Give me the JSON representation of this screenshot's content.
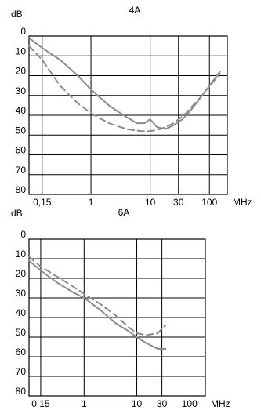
{
  "chart_data": [
    {
      "type": "line",
      "title": "4A",
      "ylabel": "dB",
      "xunit": "MHz",
      "x_scale": "log",
      "ylim": [
        0,
        80
      ],
      "y_inverted": true,
      "yticks": [
        0,
        10,
        20,
        30,
        40,
        50,
        60,
        70,
        80
      ],
      "xtick_labels": [
        "0,15",
        "1",
        "10",
        "30",
        "100"
      ],
      "xtick_values": [
        0.15,
        1,
        10,
        30,
        100
      ],
      "xgrid_values": [
        0.15,
        1,
        10,
        30,
        100
      ],
      "xlim": [
        0.09,
        200
      ],
      "grid": true,
      "colors": {
        "series": "#8c8c8c",
        "grid": "#000000"
      },
      "series": [
        {
          "style": "solid",
          "x": [
            0.09,
            0.15,
            0.3,
            0.6,
            1,
            2,
            4,
            6,
            8,
            10,
            13,
            18,
            25,
            35,
            50,
            80,
            150
          ],
          "y": [
            1,
            6,
            12,
            20,
            27,
            35,
            41,
            44,
            44,
            42,
            46,
            47,
            45,
            42,
            37,
            29,
            18
          ]
        },
        {
          "style": "dashed",
          "x": [
            0.09,
            0.15,
            0.3,
            0.6,
            1,
            2,
            4,
            7,
            10,
            15,
            25,
            40,
            70,
            150
          ],
          "y": [
            5,
            12,
            25,
            34,
            39,
            44,
            47,
            48,
            48,
            47,
            44,
            39,
            31,
            19
          ]
        }
      ]
    },
    {
      "type": "line",
      "title": "6A",
      "ylabel": "dB",
      "xunit": "MHz",
      "x_scale": "log",
      "ylim": [
        0,
        80
      ],
      "y_inverted": true,
      "yticks": [
        0,
        10,
        20,
        30,
        40,
        50,
        60,
        70,
        80
      ],
      "xtick_labels": [
        "0,15",
        "1",
        "10",
        "30",
        "100"
      ],
      "xtick_values": [
        0.15,
        1,
        10,
        30,
        100
      ],
      "xgrid_values": [
        0.15,
        1,
        10,
        30
      ],
      "xlim": [
        0.09,
        200
      ],
      "grid": true,
      "colors": {
        "series": "#8c8c8c",
        "grid": "#000000"
      },
      "series": [
        {
          "style": "solid",
          "x": [
            0.09,
            0.15,
            0.3,
            0.6,
            1,
            2,
            4,
            7,
            10,
            15,
            25,
            35
          ],
          "y": [
            11,
            16,
            22,
            27,
            30,
            36,
            43,
            47,
            50,
            53,
            56,
            56
          ]
        },
        {
          "style": "dashed",
          "x": [
            0.09,
            0.15,
            0.3,
            0.6,
            1,
            2,
            4,
            7,
            10,
            15,
            25,
            35
          ],
          "y": [
            9,
            14,
            19,
            24,
            28,
            33,
            39,
            45,
            48,
            49,
            48,
            44
          ]
        }
      ]
    }
  ]
}
